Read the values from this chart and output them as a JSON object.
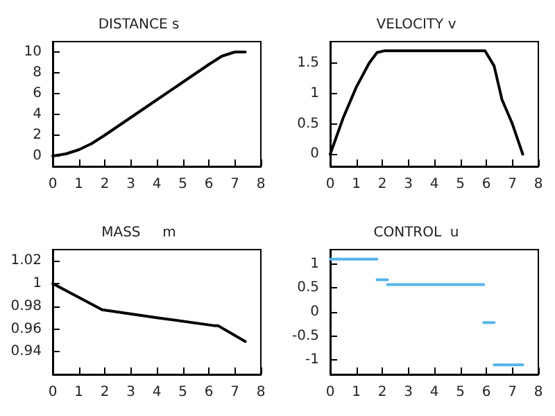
{
  "chart_data": [
    {
      "type": "line",
      "title": "DISTANCE s",
      "xlim": [
        0,
        8
      ],
      "xticks": [
        0,
        1,
        2,
        3,
        4,
        5,
        6,
        7,
        8
      ],
      "ylim": [
        -1,
        11
      ],
      "yticks": [
        0,
        2,
        4,
        6,
        8,
        10
      ],
      "grid": false,
      "marker": "none",
      "line_style": "solid",
      "series": [
        {
          "color": "#000000",
          "x": [
            0,
            0.5,
            1,
            1.5,
            2,
            3,
            4,
            5,
            6,
            6.5,
            7,
            7.4
          ],
          "values": [
            0,
            0.2,
            0.6,
            1.2,
            2.0,
            3.7,
            5.4,
            7.1,
            8.8,
            9.6,
            10,
            10
          ]
        }
      ]
    },
    {
      "type": "line",
      "title": "VELOCITY v",
      "xlim": [
        0,
        8
      ],
      "xticks": [
        0,
        1,
        2,
        3,
        4,
        5,
        6,
        7,
        8
      ],
      "ylim": [
        -0.2,
        1.85
      ],
      "yticks": [
        0,
        0.5,
        1,
        1.5
      ],
      "grid": false,
      "marker": "none",
      "line_style": "solid",
      "series": [
        {
          "color": "#000000",
          "x": [
            0,
            0.5,
            1,
            1.5,
            1.8,
            2.1,
            5.95,
            6.3,
            6.6,
            7,
            7.4
          ],
          "values": [
            0,
            0.6,
            1.1,
            1.5,
            1.67,
            1.7,
            1.7,
            1.45,
            0.9,
            0.5,
            0
          ]
        }
      ]
    },
    {
      "type": "line",
      "title": "MASS     m",
      "xlim": [
        0,
        8
      ],
      "xticks": [
        0,
        1,
        2,
        3,
        4,
        5,
        6,
        7,
        8
      ],
      "ylim": [
        0.92,
        1.03
      ],
      "yticks": [
        0.94,
        0.96,
        0.98,
        1,
        1.02
      ],
      "grid": false,
      "marker": "none",
      "line_style": "solid",
      "series": [
        {
          "color": "#000000",
          "x": [
            0,
            1.9,
            4,
            6.2,
            6.35,
            7.4
          ],
          "values": [
            1.0,
            0.977,
            0.97,
            0.963,
            0.963,
            0.949
          ]
        }
      ]
    },
    {
      "type": "line",
      "title": "CONTROL  u",
      "xlim": [
        0,
        8
      ],
      "xticks": [
        0,
        1,
        2,
        3,
        4,
        5,
        6,
        7,
        8
      ],
      "ylim": [
        -1.3,
        1.3
      ],
      "yticks": [
        -1,
        -0.5,
        0,
        0.5,
        1
      ],
      "grid": false,
      "marker": "none",
      "line_style": "solid",
      "series": [
        {
          "color": "#56b4e9",
          "x": [
            0,
            1.8
          ],
          "values": [
            1.1,
            1.1
          ]
        },
        {
          "color": "#56b4e9",
          "x": [
            1.8,
            2.2
          ],
          "values": [
            0.67,
            0.67
          ]
        },
        {
          "color": "#56b4e9",
          "x": [
            2.2,
            5.9
          ],
          "values": [
            0.57,
            0.57
          ]
        },
        {
          "color": "#56b4e9",
          "x": [
            5.9,
            6.3
          ],
          "values": [
            -0.22,
            -0.22
          ]
        },
        {
          "color": "#56b4e9",
          "x": [
            6.3,
            7.4
          ],
          "values": [
            -1.1,
            -1.1
          ]
        }
      ]
    }
  ]
}
